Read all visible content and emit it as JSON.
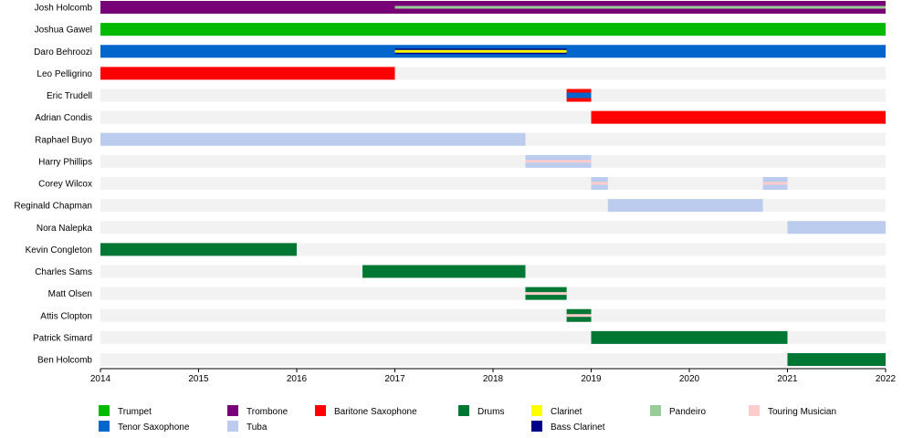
{
  "chart_data": {
    "type": "timeline",
    "x_range": [
      2014,
      2022
    ],
    "x_ticks": [
      "2014",
      "2015",
      "2016",
      "2017",
      "2018",
      "2019",
      "2020",
      "2021",
      "2022"
    ],
    "members": [
      "Josh Holcomb",
      "Joshua Gawel",
      "Daro Behroozi",
      "Leo Pelligrino",
      "Eric Trudell",
      "Adrian Condis",
      "Raphael Buyo",
      "Harry Phillips",
      "Corey Wilcox",
      "Reginald Chapman",
      "Nora Nalepka",
      "Kevin Congleton",
      "Charles Sams",
      "Matt Olsen",
      "Attis Clopton",
      "Patrick Simard",
      "Ben Holcomb"
    ],
    "roles": [
      {
        "name": "Trumpet",
        "color": "#00bb00"
      },
      {
        "name": "Trombone",
        "color": "#770077"
      },
      {
        "name": "Baritone Saxophone",
        "color": "#ff0000"
      },
      {
        "name": "Drums",
        "color": "#007733"
      },
      {
        "name": "Clarinet",
        "color": "#ffff00"
      },
      {
        "name": "Pandeiro",
        "color": "#99cc99"
      },
      {
        "name": "Touring Musician",
        "color": "#ffcccc"
      },
      {
        "name": "Tenor Saxophone",
        "color": "#0066cc"
      },
      {
        "name": "Tuba",
        "color": "#bbccee"
      },
      {
        "name": "Bass Clarinet",
        "color": "#000088"
      }
    ],
    "bars": [
      {
        "member": 0,
        "role": "Trombone",
        "start": 2014.0,
        "end": 2022.0,
        "style": "full"
      },
      {
        "member": 0,
        "role": "Pandeiro",
        "start": 2017.0,
        "end": 2022.0,
        "style": "center-stripe"
      },
      {
        "member": 1,
        "role": "Trumpet",
        "start": 2014.0,
        "end": 2022.0,
        "style": "full"
      },
      {
        "member": 2,
        "role": "Tenor Saxophone",
        "start": 2014.0,
        "end": 2022.0,
        "style": "full"
      },
      {
        "member": 2,
        "role": "Bass Clarinet",
        "start": 2017.0,
        "end": 2018.75,
        "style": "center-band"
      },
      {
        "member": 2,
        "role": "Clarinet",
        "start": 2017.0,
        "end": 2018.75,
        "style": "center-stripe"
      },
      {
        "member": 3,
        "role": "Baritone Saxophone",
        "start": 2014.0,
        "end": 2017.0,
        "style": "full"
      },
      {
        "member": 4,
        "role": "Baritone Saxophone",
        "start": 2018.75,
        "end": 2019.0,
        "style": "full"
      },
      {
        "member": 4,
        "role": "Tenor Saxophone",
        "start": 2018.75,
        "end": 2019.0,
        "style": "center-band"
      },
      {
        "member": 5,
        "role": "Baritone Saxophone",
        "start": 2019.0,
        "end": 2022.0,
        "style": "full"
      },
      {
        "member": 6,
        "role": "Tuba",
        "start": 2014.0,
        "end": 2018.33,
        "style": "full"
      },
      {
        "member": 7,
        "role": "Tuba",
        "start": 2018.33,
        "end": 2019.0,
        "style": "full"
      },
      {
        "member": 7,
        "role": "Touring Musician",
        "start": 2018.33,
        "end": 2019.0,
        "style": "center-stripe"
      },
      {
        "member": 8,
        "role": "Tuba",
        "start": 2019.0,
        "end": 2019.17,
        "style": "full"
      },
      {
        "member": 8,
        "role": "Touring Musician",
        "start": 2019.0,
        "end": 2019.17,
        "style": "center-stripe"
      },
      {
        "member": 8,
        "role": "Tuba",
        "start": 2020.75,
        "end": 2021.0,
        "style": "full"
      },
      {
        "member": 8,
        "role": "Touring Musician",
        "start": 2020.75,
        "end": 2021.0,
        "style": "center-stripe"
      },
      {
        "member": 9,
        "role": "Tuba",
        "start": 2019.17,
        "end": 2020.75,
        "style": "full"
      },
      {
        "member": 10,
        "role": "Tuba",
        "start": 2021.0,
        "end": 2022.0,
        "style": "full"
      },
      {
        "member": 11,
        "role": "Drums",
        "start": 2014.0,
        "end": 2016.0,
        "style": "full"
      },
      {
        "member": 12,
        "role": "Drums",
        "start": 2016.67,
        "end": 2018.33,
        "style": "full"
      },
      {
        "member": 13,
        "role": "Drums",
        "start": 2018.33,
        "end": 2018.75,
        "style": "full"
      },
      {
        "member": 13,
        "role": "Touring Musician",
        "start": 2018.33,
        "end": 2018.75,
        "style": "center-stripe"
      },
      {
        "member": 14,
        "role": "Drums",
        "start": 2018.75,
        "end": 2019.0,
        "style": "full"
      },
      {
        "member": 14,
        "role": "Touring Musician",
        "start": 2018.75,
        "end": 2019.0,
        "style": "center-stripe"
      },
      {
        "member": 15,
        "role": "Drums",
        "start": 2019.0,
        "end": 2021.0,
        "style": "full"
      },
      {
        "member": 16,
        "role": "Drums",
        "start": 2021.0,
        "end": 2022.0,
        "style": "full"
      }
    ],
    "legend": {
      "rows": [
        [
          "Trumpet",
          "Trombone",
          "Baritone Saxophone",
          "Drums",
          "Clarinet",
          "Pandeiro",
          "Touring Musician"
        ],
        [
          "Tenor Saxophone",
          "Tuba",
          "",
          "",
          "Bass Clarinet"
        ]
      ]
    },
    "grid": false,
    "legend_placement": "bottom"
  }
}
